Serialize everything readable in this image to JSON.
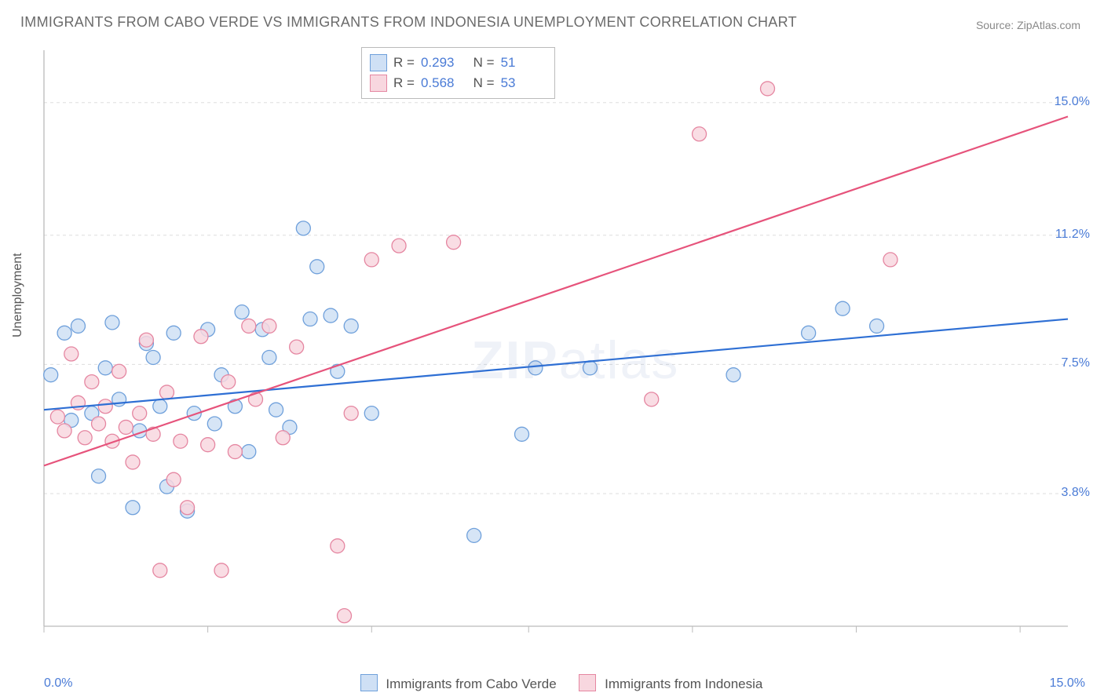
{
  "title": "IMMIGRANTS FROM CABO VERDE VS IMMIGRANTS FROM INDONESIA UNEMPLOYMENT CORRELATION CHART",
  "source": "Source: ZipAtlas.com",
  "watermark_zip": "ZIP",
  "watermark_atlas": "atlas",
  "chart": {
    "type": "scatter-with-regression",
    "ylabel": "Unemployment",
    "xlim": [
      0,
      15
    ],
    "ylim": [
      0,
      16.5
    ],
    "xtick_labels": [
      "0.0%",
      "15.0%"
    ],
    "ytick_positions": [
      3.8,
      7.5,
      11.2,
      15.0
    ],
    "ytick_labels": [
      "3.8%",
      "7.5%",
      "11.2%",
      "15.0%"
    ],
    "xgrid_positions": [
      0,
      2.4,
      4.8,
      7.1,
      9.5,
      11.9,
      14.3
    ],
    "grid_color": "#dddddd",
    "axis_color": "#cccccc",
    "background_color": "#ffffff",
    "marker_radius": 9,
    "marker_stroke_width": 1.3,
    "line_width": 2.2,
    "series": [
      {
        "label": "Immigrants from Cabo Verde",
        "fill": "#cfe0f5",
        "stroke": "#6fa0db",
        "line_color": "#2e6fd4",
        "R": "0.293",
        "N": "51",
        "reg_p1": [
          0,
          6.2
        ],
        "reg_p2": [
          15,
          8.8
        ],
        "points": [
          [
            0.1,
            7.2
          ],
          [
            0.3,
            8.4
          ],
          [
            0.4,
            5.9
          ],
          [
            0.5,
            8.6
          ],
          [
            0.7,
            6.1
          ],
          [
            0.8,
            4.3
          ],
          [
            0.9,
            7.4
          ],
          [
            1.0,
            8.7
          ],
          [
            1.1,
            6.5
          ],
          [
            1.3,
            3.4
          ],
          [
            1.4,
            5.6
          ],
          [
            1.5,
            8.1
          ],
          [
            1.6,
            7.7
          ],
          [
            1.7,
            6.3
          ],
          [
            1.8,
            4.0
          ],
          [
            1.9,
            8.4
          ],
          [
            2.1,
            3.3
          ],
          [
            2.2,
            6.1
          ],
          [
            2.4,
            8.5
          ],
          [
            2.5,
            5.8
          ],
          [
            2.6,
            7.2
          ],
          [
            2.8,
            6.3
          ],
          [
            2.9,
            9.0
          ],
          [
            3.0,
            5.0
          ],
          [
            3.2,
            8.5
          ],
          [
            3.3,
            7.7
          ],
          [
            3.4,
            6.2
          ],
          [
            3.6,
            5.7
          ],
          [
            3.8,
            11.4
          ],
          [
            3.9,
            8.8
          ],
          [
            4.0,
            10.3
          ],
          [
            4.2,
            8.9
          ],
          [
            4.3,
            7.3
          ],
          [
            4.5,
            8.6
          ],
          [
            4.8,
            6.1
          ],
          [
            6.3,
            2.6
          ],
          [
            7.0,
            5.5
          ],
          [
            7.2,
            7.4
          ],
          [
            8.0,
            7.4
          ],
          [
            10.1,
            7.2
          ],
          [
            11.2,
            8.4
          ],
          [
            11.7,
            9.1
          ],
          [
            12.2,
            8.6
          ]
        ]
      },
      {
        "label": "Immigrants from Indonesia",
        "fill": "#f8d7df",
        "stroke": "#e586a1",
        "line_color": "#e6537b",
        "R": "0.568",
        "N": "53",
        "reg_p1": [
          0,
          4.6
        ],
        "reg_p2": [
          15,
          14.6
        ],
        "points": [
          [
            0.2,
            6.0
          ],
          [
            0.3,
            5.6
          ],
          [
            0.4,
            7.8
          ],
          [
            0.5,
            6.4
          ],
          [
            0.6,
            5.4
          ],
          [
            0.7,
            7.0
          ],
          [
            0.8,
            5.8
          ],
          [
            0.9,
            6.3
          ],
          [
            1.0,
            5.3
          ],
          [
            1.1,
            7.3
          ],
          [
            1.2,
            5.7
          ],
          [
            1.3,
            4.7
          ],
          [
            1.4,
            6.1
          ],
          [
            1.5,
            8.2
          ],
          [
            1.6,
            5.5
          ],
          [
            1.7,
            1.6
          ],
          [
            1.8,
            6.7
          ],
          [
            1.9,
            4.2
          ],
          [
            2.0,
            5.3
          ],
          [
            2.1,
            3.4
          ],
          [
            2.3,
            8.3
          ],
          [
            2.4,
            5.2
          ],
          [
            2.6,
            1.6
          ],
          [
            2.7,
            7.0
          ],
          [
            2.8,
            5.0
          ],
          [
            3.0,
            8.6
          ],
          [
            3.1,
            6.5
          ],
          [
            3.3,
            8.6
          ],
          [
            3.5,
            5.4
          ],
          [
            3.7,
            8.0
          ],
          [
            4.3,
            2.3
          ],
          [
            4.4,
            0.3
          ],
          [
            4.5,
            6.1
          ],
          [
            4.8,
            10.5
          ],
          [
            5.2,
            10.9
          ],
          [
            6.0,
            11.0
          ],
          [
            8.9,
            6.5
          ],
          [
            9.6,
            14.1
          ],
          [
            10.6,
            15.4
          ],
          [
            12.4,
            10.5
          ]
        ]
      }
    ]
  },
  "colors": {
    "title_text": "#6b6b6b",
    "tick_text": "#4a7bd6",
    "label_text": "#555555"
  }
}
